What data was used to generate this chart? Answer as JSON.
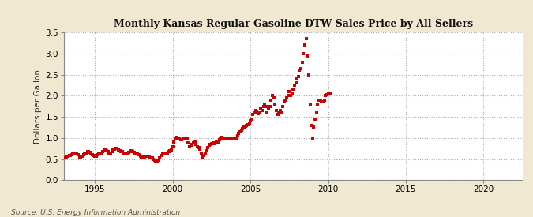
{
  "title": "Monthly Kansas Regular Gasoline DTW Sales Price by All Sellers",
  "ylabel": "Dollars per Gallon",
  "source": "Source: U.S. Energy Information Administration",
  "outer_bg": "#f0e8d0",
  "plot_bg": "#ffffff",
  "marker_color": "#cc0000",
  "xlim": [
    1993.0,
    2022.5
  ],
  "ylim": [
    0.0,
    3.5
  ],
  "yticks": [
    0.0,
    0.5,
    1.0,
    1.5,
    2.0,
    2.5,
    3.0,
    3.5
  ],
  "xticks": [
    1995,
    2000,
    2005,
    2010,
    2015,
    2020
  ],
  "data": [
    [
      1993.0,
      0.52
    ],
    [
      1993.083,
      0.53
    ],
    [
      1993.167,
      0.55
    ],
    [
      1993.25,
      0.57
    ],
    [
      1993.333,
      0.58
    ],
    [
      1993.417,
      0.59
    ],
    [
      1993.5,
      0.6
    ],
    [
      1993.583,
      0.62
    ],
    [
      1993.667,
      0.63
    ],
    [
      1993.75,
      0.64
    ],
    [
      1993.833,
      0.62
    ],
    [
      1993.917,
      0.6
    ],
    [
      1994.0,
      0.55
    ],
    [
      1994.083,
      0.54
    ],
    [
      1994.167,
      0.56
    ],
    [
      1994.25,
      0.6
    ],
    [
      1994.333,
      0.63
    ],
    [
      1994.417,
      0.65
    ],
    [
      1994.5,
      0.67
    ],
    [
      1994.583,
      0.68
    ],
    [
      1994.667,
      0.66
    ],
    [
      1994.75,
      0.64
    ],
    [
      1994.833,
      0.61
    ],
    [
      1994.917,
      0.58
    ],
    [
      1995.0,
      0.56
    ],
    [
      1995.083,
      0.57
    ],
    [
      1995.167,
      0.6
    ],
    [
      1995.25,
      0.63
    ],
    [
      1995.333,
      0.64
    ],
    [
      1995.417,
      0.65
    ],
    [
      1995.5,
      0.67
    ],
    [
      1995.583,
      0.7
    ],
    [
      1995.667,
      0.72
    ],
    [
      1995.75,
      0.7
    ],
    [
      1995.833,
      0.68
    ],
    [
      1995.917,
      0.65
    ],
    [
      1996.0,
      0.63
    ],
    [
      1996.083,
      0.67
    ],
    [
      1996.167,
      0.72
    ],
    [
      1996.25,
      0.74
    ],
    [
      1996.333,
      0.76
    ],
    [
      1996.417,
      0.75
    ],
    [
      1996.5,
      0.72
    ],
    [
      1996.583,
      0.7
    ],
    [
      1996.667,
      0.68
    ],
    [
      1996.75,
      0.67
    ],
    [
      1996.833,
      0.65
    ],
    [
      1996.917,
      0.63
    ],
    [
      1997.0,
      0.62
    ],
    [
      1997.083,
      0.64
    ],
    [
      1997.167,
      0.66
    ],
    [
      1997.25,
      0.68
    ],
    [
      1997.333,
      0.7
    ],
    [
      1997.417,
      0.68
    ],
    [
      1997.5,
      0.66
    ],
    [
      1997.583,
      0.65
    ],
    [
      1997.667,
      0.64
    ],
    [
      1997.75,
      0.63
    ],
    [
      1997.833,
      0.6
    ],
    [
      1997.917,
      0.57
    ],
    [
      1998.0,
      0.55
    ],
    [
      1998.083,
      0.54
    ],
    [
      1998.167,
      0.54
    ],
    [
      1998.25,
      0.56
    ],
    [
      1998.333,
      0.57
    ],
    [
      1998.417,
      0.57
    ],
    [
      1998.5,
      0.55
    ],
    [
      1998.583,
      0.53
    ],
    [
      1998.667,
      0.52
    ],
    [
      1998.75,
      0.5
    ],
    [
      1998.833,
      0.48
    ],
    [
      1998.917,
      0.46
    ],
    [
      1999.0,
      0.44
    ],
    [
      1999.083,
      0.47
    ],
    [
      1999.167,
      0.52
    ],
    [
      1999.25,
      0.58
    ],
    [
      1999.333,
      0.63
    ],
    [
      1999.417,
      0.65
    ],
    [
      1999.5,
      0.65
    ],
    [
      1999.583,
      0.64
    ],
    [
      1999.667,
      0.65
    ],
    [
      1999.75,
      0.67
    ],
    [
      1999.833,
      0.7
    ],
    [
      1999.917,
      0.72
    ],
    [
      2000.0,
      0.8
    ],
    [
      2000.083,
      0.9
    ],
    [
      2000.167,
      1.0
    ],
    [
      2000.25,
      1.02
    ],
    [
      2000.333,
      1.0
    ],
    [
      2000.417,
      0.98
    ],
    [
      2000.5,
      0.96
    ],
    [
      2000.583,
      0.95
    ],
    [
      2000.667,
      0.97
    ],
    [
      2000.75,
      0.98
    ],
    [
      2000.833,
      1.0
    ],
    [
      2000.917,
      0.97
    ],
    [
      2001.0,
      0.88
    ],
    [
      2001.083,
      0.8
    ],
    [
      2001.167,
      0.82
    ],
    [
      2001.25,
      0.85
    ],
    [
      2001.333,
      0.88
    ],
    [
      2001.417,
      0.9
    ],
    [
      2001.5,
      0.85
    ],
    [
      2001.583,
      0.8
    ],
    [
      2001.667,
      0.78
    ],
    [
      2001.75,
      0.73
    ],
    [
      2001.833,
      0.63
    ],
    [
      2001.917,
      0.55
    ],
    [
      2002.0,
      0.58
    ],
    [
      2002.083,
      0.63
    ],
    [
      2002.167,
      0.7
    ],
    [
      2002.25,
      0.78
    ],
    [
      2002.333,
      0.83
    ],
    [
      2002.417,
      0.85
    ],
    [
      2002.5,
      0.87
    ],
    [
      2002.583,
      0.88
    ],
    [
      2002.667,
      0.87
    ],
    [
      2002.75,
      0.88
    ],
    [
      2002.833,
      0.9
    ],
    [
      2002.917,
      0.88
    ],
    [
      2003.0,
      0.95
    ],
    [
      2003.083,
      1.0
    ],
    [
      2003.167,
      1.02
    ],
    [
      2003.25,
      1.0
    ],
    [
      2003.333,
      0.98
    ],
    [
      2003.417,
      0.97
    ],
    [
      2003.5,
      0.97
    ],
    [
      2003.583,
      0.98
    ],
    [
      2003.667,
      0.98
    ],
    [
      2003.75,
      0.97
    ],
    [
      2003.833,
      0.98
    ],
    [
      2003.917,
      0.98
    ],
    [
      2004.0,
      0.98
    ],
    [
      2004.083,
      1.0
    ],
    [
      2004.167,
      1.05
    ],
    [
      2004.25,
      1.1
    ],
    [
      2004.333,
      1.15
    ],
    [
      2004.417,
      1.18
    ],
    [
      2004.5,
      1.22
    ],
    [
      2004.583,
      1.25
    ],
    [
      2004.667,
      1.28
    ],
    [
      2004.75,
      1.3
    ],
    [
      2004.833,
      1.32
    ],
    [
      2004.917,
      1.35
    ],
    [
      2005.0,
      1.4
    ],
    [
      2005.083,
      1.45
    ],
    [
      2005.167,
      1.55
    ],
    [
      2005.25,
      1.6
    ],
    [
      2005.333,
      1.65
    ],
    [
      2005.417,
      1.62
    ],
    [
      2005.5,
      1.58
    ],
    [
      2005.583,
      1.6
    ],
    [
      2005.667,
      1.7
    ],
    [
      2005.75,
      1.65
    ],
    [
      2005.833,
      1.75
    ],
    [
      2005.917,
      1.8
    ],
    [
      2006.0,
      1.75
    ],
    [
      2006.083,
      1.6
    ],
    [
      2006.167,
      1.7
    ],
    [
      2006.25,
      1.75
    ],
    [
      2006.333,
      1.9
    ],
    [
      2006.417,
      2.0
    ],
    [
      2006.5,
      1.95
    ],
    [
      2006.583,
      1.8
    ],
    [
      2006.667,
      1.65
    ],
    [
      2006.75,
      1.55
    ],
    [
      2006.833,
      1.6
    ],
    [
      2006.917,
      1.65
    ],
    [
      2007.0,
      1.6
    ],
    [
      2007.083,
      1.75
    ],
    [
      2007.167,
      1.85
    ],
    [
      2007.25,
      1.9
    ],
    [
      2007.333,
      1.95
    ],
    [
      2007.417,
      2.0
    ],
    [
      2007.5,
      2.1
    ],
    [
      2007.583,
      2.0
    ],
    [
      2007.667,
      2.05
    ],
    [
      2007.75,
      2.15
    ],
    [
      2007.833,
      2.25
    ],
    [
      2007.917,
      2.3
    ],
    [
      2008.0,
      2.4
    ],
    [
      2008.083,
      2.45
    ],
    [
      2008.167,
      2.6
    ],
    [
      2008.25,
      2.65
    ],
    [
      2008.333,
      2.8
    ],
    [
      2008.417,
      3.0
    ],
    [
      2008.5,
      3.2
    ],
    [
      2008.583,
      3.35
    ],
    [
      2008.667,
      2.95
    ],
    [
      2008.75,
      2.5
    ],
    [
      2008.833,
      1.8
    ],
    [
      2008.917,
      1.3
    ],
    [
      2009.0,
      1.0
    ],
    [
      2009.083,
      1.25
    ],
    [
      2009.167,
      1.45
    ],
    [
      2009.25,
      1.6
    ],
    [
      2009.333,
      1.8
    ],
    [
      2009.417,
      1.9
    ],
    [
      2009.5,
      1.9
    ],
    [
      2009.583,
      1.85
    ],
    [
      2009.667,
      1.85
    ],
    [
      2009.75,
      1.9
    ],
    [
      2009.833,
      2.0
    ],
    [
      2009.917,
      2.02
    ],
    [
      2010.0,
      2.05
    ],
    [
      2010.083,
      2.07
    ],
    [
      2010.167,
      2.05
    ]
  ]
}
